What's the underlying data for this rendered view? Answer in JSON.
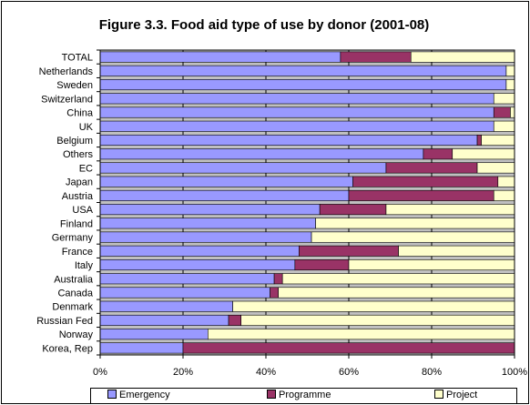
{
  "chart_data": {
    "type": "bar",
    "orientation": "horizontal",
    "stacked": true,
    "title": "Figure 3.3. Food aid type of use by donor (2001-08)",
    "categories": [
      "TOTAL",
      "Netherlands",
      "Sweden",
      "Switzerland",
      "China",
      "UK",
      "Belgium",
      "Others",
      "EC",
      "Japan",
      "Austria",
      "USA",
      "Finland",
      "Germany",
      "France",
      "Italy",
      "Australia",
      "Canada",
      "Denmark",
      "Russian Fed",
      "Norway",
      "Korea, Rep"
    ],
    "series": [
      {
        "name": "Emergency",
        "color": "#9999ff",
        "values": [
          58,
          98,
          98,
          95,
          95,
          95,
          91,
          78,
          69,
          61,
          60,
          53,
          52,
          51,
          48,
          47,
          42,
          41,
          32,
          31,
          26,
          20
        ]
      },
      {
        "name": "Programme",
        "color": "#993366",
        "values": [
          17,
          0,
          0,
          0,
          4,
          0,
          1,
          7,
          22,
          35,
          35,
          16,
          0,
          0,
          24,
          13,
          2,
          2,
          0,
          3,
          0,
          80
        ]
      },
      {
        "name": "Project",
        "color": "#ffffcc",
        "values": [
          25,
          2,
          2,
          5,
          1,
          5,
          8,
          15,
          9,
          4,
          5,
          31,
          48,
          49,
          28,
          40,
          56,
          57,
          68,
          66,
          74,
          0
        ]
      }
    ],
    "xticks": [
      "0%",
      "20%",
      "40%",
      "60%",
      "80%",
      "100%"
    ],
    "xlim": [
      0,
      100
    ],
    "grid": true,
    "legend_position": "bottom",
    "plot_background": "#c0c0c0"
  }
}
